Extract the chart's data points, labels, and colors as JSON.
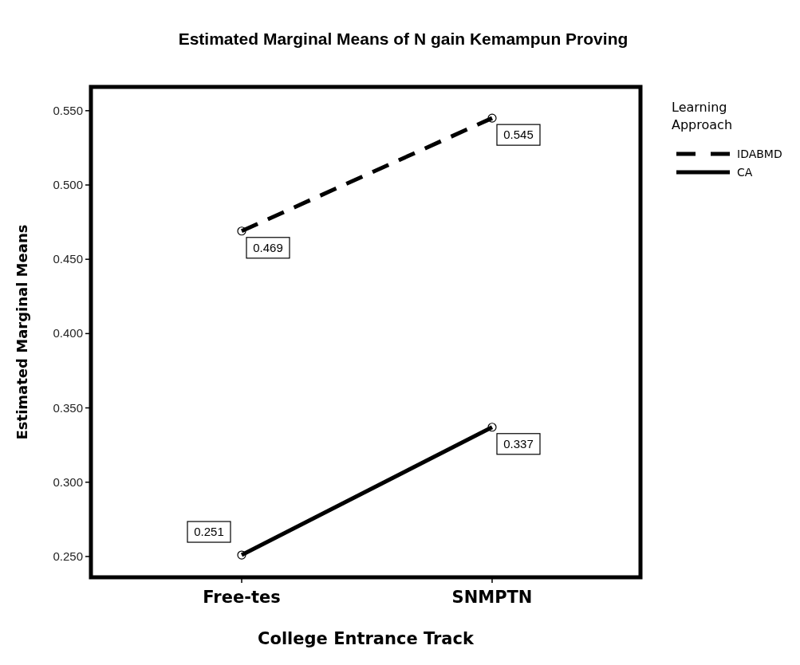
{
  "chart_data": {
    "type": "line",
    "title": "Estimated Marginal Means of N gain Kemampun Proving",
    "xlabel": "College Entrance Track",
    "ylabel": "Estimated Marginal Means",
    "legend_title": "Learning Approach",
    "categories": [
      "Free-tes",
      "SNMPTN"
    ],
    "series": [
      {
        "name": "IDABMD",
        "color": "#000000",
        "values": [
          0.469,
          0.545
        ],
        "line_style": "dashed"
      },
      {
        "name": "CA",
        "color": "#000000",
        "values": [
          0.251,
          0.337
        ],
        "line_style": "solid"
      }
    ],
    "ylim": [
      0.236,
      0.566
    ],
    "yticks": [
      {
        "value": 0.25,
        "label": "0.250"
      },
      {
        "value": 0.3,
        "label": "0.300"
      },
      {
        "value": 0.35,
        "label": "0.350"
      },
      {
        "value": 0.4,
        "label": "0.400"
      },
      {
        "value": 0.45,
        "label": "0.450"
      },
      {
        "value": 0.5,
        "label": "0.500"
      },
      {
        "value": 0.55,
        "label": "0.550"
      }
    ],
    "grid": false,
    "legend": "right",
    "marker": "circle",
    "data_labels": true
  }
}
